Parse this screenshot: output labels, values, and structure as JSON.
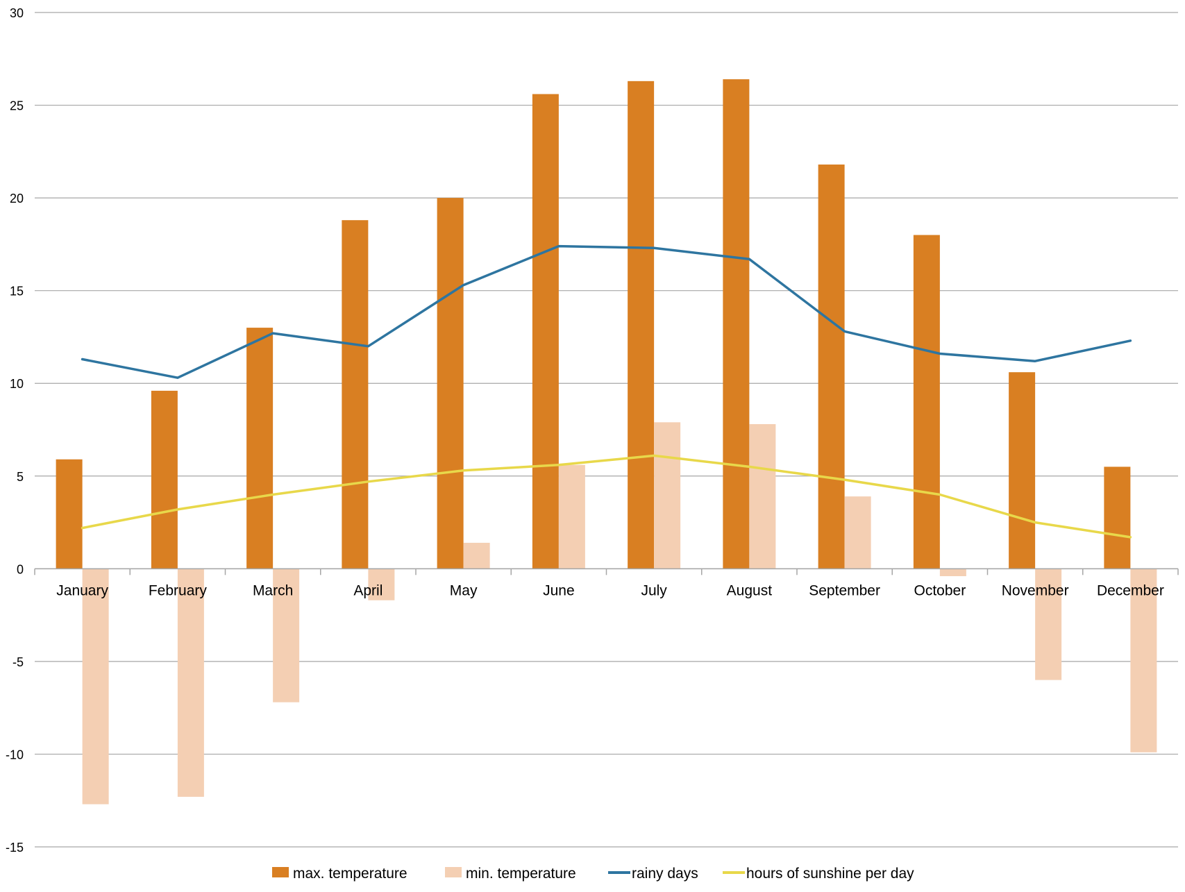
{
  "chart_data": {
    "type": "bar",
    "categories": [
      "January",
      "February",
      "March",
      "April",
      "May",
      "June",
      "July",
      "August",
      "September",
      "October",
      "November",
      "December"
    ],
    "series": [
      {
        "name": "max.  temperature",
        "kind": "bar",
        "color": "#D97F22",
        "values": [
          5.9,
          9.6,
          13.0,
          18.8,
          20.0,
          25.6,
          26.3,
          26.4,
          21.8,
          18.0,
          10.6,
          5.5
        ]
      },
      {
        "name": "min. temperature",
        "kind": "bar",
        "color": "#F4CFB3",
        "values": [
          -12.7,
          -12.3,
          -7.2,
          -1.7,
          1.4,
          5.6,
          7.9,
          7.8,
          3.9,
          -0.4,
          -6.0,
          -9.9
        ]
      },
      {
        "name": "rainy days",
        "kind": "line",
        "color": "#2E75A0",
        "values": [
          11.3,
          10.3,
          12.7,
          12.0,
          15.3,
          17.4,
          17.3,
          16.7,
          12.8,
          11.6,
          11.2,
          12.3
        ]
      },
      {
        "name": "hours of sunshine per day",
        "kind": "line",
        "color": "#E8D84A",
        "values": [
          2.2,
          3.2,
          4.0,
          4.7,
          5.3,
          5.6,
          6.1,
          5.5,
          4.8,
          4.0,
          2.5,
          1.7
        ]
      }
    ],
    "title": "",
    "xlabel": "",
    "ylabel": "",
    "ylim": [
      -15,
      30
    ],
    "yticks": [
      30,
      25,
      20,
      15,
      10,
      5,
      0,
      -5,
      -10,
      -15
    ],
    "grid": true,
    "legend_position": "bottom",
    "colors": {
      "gridline": "#A6A6A6",
      "axis": "#A6A6A6"
    }
  }
}
